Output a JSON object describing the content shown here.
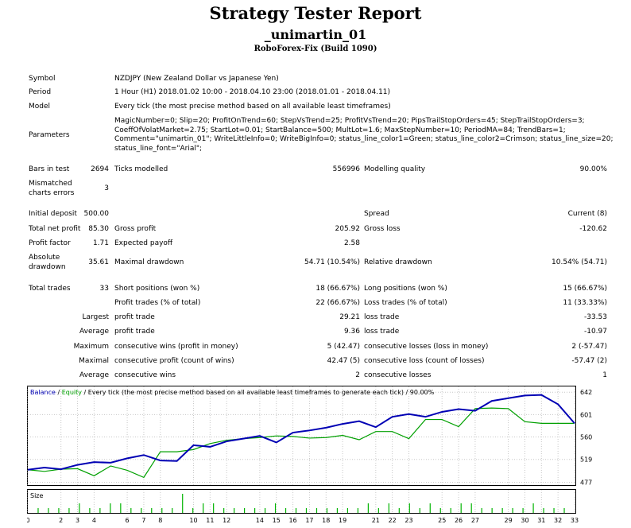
{
  "header": {
    "title": "Strategy Tester Report",
    "expert": "_unimartin_01",
    "server": "RoboForex-Fix (Build 1090)"
  },
  "info": {
    "symbol_label": "Symbol",
    "symbol_value": "NZDJPY (New Zealand Dollar vs Japanese Yen)",
    "period_label": "Period",
    "period_value": "1 Hour (H1) 2018.01.02 10:00 - 2018.04.10 23:00 (2018.01.01 - 2018.04.11)",
    "model_label": "Model",
    "model_value": "Every tick (the most precise method based on all available least timeframes)",
    "parameters_label": "Parameters",
    "parameters_value": "MagicNumber=0; Slip=20; ProfitOnTrend=60; StepVsTrend=25; ProfitVsTrend=20; PipsTrailStopOrders=45; StepTrailStopOrders=3; CoeffOfVolatMarket=2.75; StartLot=0.01; StartBalance=500; MultLot=1.6; MaxStepNumber=10; PeriodMA=84; TrendBars=1; Comment=\"unimartin_01\"; WriteLittleInfo=0; WriteBigInfo=0; status_line_color1=Green; status_line_color2=Crimson; status_line_size=20; status_line_font=\"Arial\";"
  },
  "stats": {
    "bars_label": "Bars in test",
    "bars_value": "2694",
    "ticks_label": "Ticks modelled",
    "ticks_value": "556996",
    "quality_label": "Modelling quality",
    "quality_value": "90.00%",
    "mismatch_label_1": "Mismatched",
    "mismatch_label_2": "charts errors",
    "mismatch_value": "3",
    "deposit_label": "Initial deposit",
    "deposit_value": "500.00",
    "spread_label": "Spread",
    "spread_value": "Current (8)",
    "netprofit_label": "Total net profit",
    "netprofit_value": "85.30",
    "grossprofit_label": "Gross profit",
    "grossprofit_value": "205.92",
    "grossloss_label": "Gross loss",
    "grossloss_value": "-120.62",
    "pf_label": "Profit factor",
    "pf_value": "1.71",
    "payoff_label": "Expected payoff",
    "payoff_value": "2.58",
    "absdd_label_1": "Absolute",
    "absdd_label_2": "drawdown",
    "absdd_value": "35.61",
    "maxdd_label": "Maximal drawdown",
    "maxdd_value": "54.71 (10.54%)",
    "reldd_label": "Relative drawdown",
    "reldd_value": "10.54% (54.71)",
    "trades_label": "Total trades",
    "trades_value": "33",
    "short_label": "Short positions (won %)",
    "short_value": "18 (66.67%)",
    "long_label": "Long positions (won %)",
    "long_value": "15 (66.67%)",
    "ptrades_label": "Profit trades (% of total)",
    "ptrades_value": "22 (66.67%)",
    "ltrades_label": "Loss trades (% of total)",
    "ltrades_value": "11 (33.33%)",
    "largest_label": "Largest",
    "largest_profit_label": "profit trade",
    "largest_profit_value": "29.21",
    "largest_loss_label": "loss trade",
    "largest_loss_value": "-33.53",
    "average_label": "Average",
    "average_profit_label": "profit trade",
    "average_profit_value": "9.36",
    "average_loss_label": "loss trade",
    "average_loss_value": "-10.97",
    "maximum_label": "Maximum",
    "max_wins_label": "consecutive wins (profit in money)",
    "max_wins_value": "5 (42.47)",
    "max_losses_label": "consecutive losses (loss in money)",
    "max_losses_value": "2 (-57.47)",
    "maximal_label": "Maximal",
    "maximal_profit_label": "consecutive profit (count of wins)",
    "maximal_profit_value": "42.47 (5)",
    "maximal_loss_label": "consecutive loss (count of losses)",
    "maximal_loss_value": "-57.47 (2)",
    "avg_label": "Average",
    "avg_wins_label": "consecutive wins",
    "avg_wins_value": "2",
    "avg_losses_label": "consecutive losses",
    "avg_losses_value": "1"
  },
  "chart_legend": {
    "balance": "Balance",
    "sep1": " / ",
    "equity": "Equity",
    "rest": " / Every tick (the most precise method based on all available least timeframes to generate each tick) / 90.00%"
  },
  "size_label": "Size",
  "colors": {
    "balance": "#0000b4",
    "equity": "#00a000",
    "size_bars": "#00b400",
    "grid": "#c8c8c8"
  },
  "chart_data": {
    "type": "line",
    "x": [
      0,
      1,
      2,
      3,
      4,
      5,
      6,
      7,
      8,
      9,
      10,
      11,
      12,
      13,
      14,
      15,
      16,
      17,
      18,
      19,
      20,
      21,
      22,
      23,
      24,
      25,
      26,
      27,
      28,
      29,
      30,
      31,
      32,
      33
    ],
    "x_ticks": [
      0,
      2,
      3,
      4,
      6,
      7,
      8,
      10,
      11,
      12,
      14,
      15,
      16,
      17,
      18,
      19,
      21,
      22,
      23,
      25,
      26,
      27,
      29,
      30,
      31,
      32,
      33
    ],
    "y_ticks": [
      642,
      601,
      560,
      519,
      477
    ],
    "ylim": [
      472,
      654
    ],
    "series": [
      {
        "name": "Balance",
        "values": [
          500,
          504,
          501,
          509,
          514,
          513,
          521,
          527,
          517,
          516,
          545,
          542,
          552,
          557,
          562,
          550,
          568,
          572,
          577,
          584,
          589,
          578,
          597,
          602,
          597,
          606,
          611,
          608,
          626,
          631,
          636,
          637,
          620,
          585
        ]
      },
      {
        "name": "Equity",
        "values": [
          500,
          497,
          501,
          502,
          489,
          507,
          499,
          486,
          533,
          533,
          537,
          548,
          554,
          557,
          559,
          562,
          561,
          558,
          559,
          563,
          555,
          570,
          570,
          557,
          592,
          592,
          579,
          612,
          613,
          612,
          588,
          585,
          585,
          585
        ]
      }
    ],
    "size": {
      "name": "Size",
      "values": [
        1,
        1,
        1,
        1,
        2,
        1,
        1,
        2,
        2,
        1,
        1,
        1,
        1,
        1,
        4,
        1,
        2,
        2,
        1,
        1,
        1,
        1,
        1,
        2,
        1,
        1,
        1,
        1,
        1,
        1,
        1,
        1,
        2,
        1,
        2,
        1,
        2,
        1,
        2,
        1,
        1,
        2,
        2,
        1,
        1,
        1,
        1,
        1,
        2,
        1,
        1,
        1
      ]
    }
  }
}
